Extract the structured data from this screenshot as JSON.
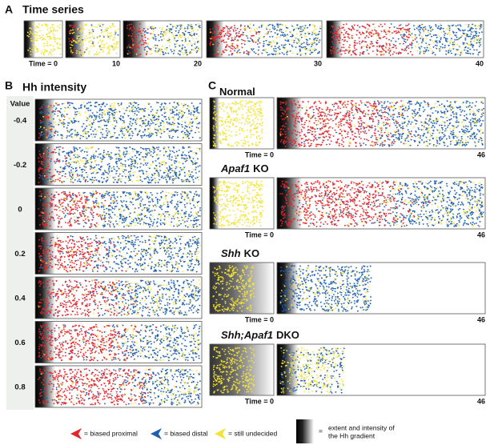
{
  "panel_a": {
    "label": "A",
    "title": "Time series",
    "time_labels": [
      "Time = 0",
      "10",
      "20",
      "30",
      "40"
    ]
  },
  "panel_b": {
    "label": "B",
    "title": "Hh intensity",
    "column_header": "Value",
    "values": [
      "-0.4",
      "-0.2",
      "0",
      "0.2",
      "0.4",
      "0.6",
      "0.8"
    ]
  },
  "panel_c": {
    "label": "C",
    "start_label": "Time = 0",
    "end_label": "46",
    "conditions": [
      {
        "parts": [
          {
            "text": "Normal",
            "italic": false
          }
        ]
      },
      {
        "parts": [
          {
            "text": "Apaf1",
            "italic": true
          },
          {
            "text": "KO",
            "italic": false
          }
        ]
      },
      {
        "parts": [
          {
            "text": "Shh",
            "italic": true
          },
          {
            "text": "KO",
            "italic": false
          }
        ]
      },
      {
        "parts": [
          {
            "text": "Shh;Apaf1",
            "italic": true
          },
          {
            "text": "DKO",
            "italic": false
          }
        ]
      }
    ]
  },
  "legend": {
    "items": [
      {
        "label": "= biased proximal",
        "color": "#e3262a"
      },
      {
        "label": "= biased distal",
        "color": "#1f5fae"
      },
      {
        "label": "= still undecided",
        "color": "#f2e33a"
      }
    ],
    "gradient_equals": "=",
    "gradient_lines": [
      "extent and intensity of",
      "the Hh gradient"
    ]
  }
}
